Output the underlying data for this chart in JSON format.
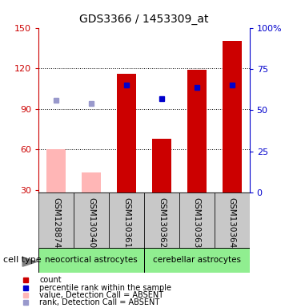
{
  "title": "GDS3366 / 1453309_at",
  "samples": [
    "GSM128874",
    "GSM130340",
    "GSM130361",
    "GSM130362",
    "GSM130363",
    "GSM130364"
  ],
  "count_values": [
    null,
    null,
    116,
    68,
    119,
    140
  ],
  "count_absent": [
    60,
    43,
    null,
    null,
    null,
    null
  ],
  "percentile_values": [
    null,
    null,
    65,
    57,
    64,
    65
  ],
  "percentile_absent": [
    56,
    54,
    null,
    null,
    null,
    null
  ],
  "cell_types": [
    {
      "label": "neocortical astrocytes",
      "start": 0,
      "end": 3,
      "color": "#90ee90"
    },
    {
      "label": "cerebellar astrocytes",
      "start": 3,
      "end": 6,
      "color": "#90ee90"
    }
  ],
  "ylim_left": [
    28,
    150
  ],
  "ylim_right": [
    0,
    100
  ],
  "yticks_left": [
    30,
    60,
    90,
    120,
    150
  ],
  "yticks_right": [
    0,
    25,
    50,
    75,
    100
  ],
  "red_color": "#cc0000",
  "pink_color": "#ffb6b6",
  "blue_color": "#0000cc",
  "light_blue_color": "#9999cc",
  "bg_color": "#c8c8c8",
  "left_axis_color": "#cc0000",
  "right_axis_color": "#0000cc",
  "grid_lines": [
    60,
    90,
    120
  ],
  "bar_width": 0.55
}
